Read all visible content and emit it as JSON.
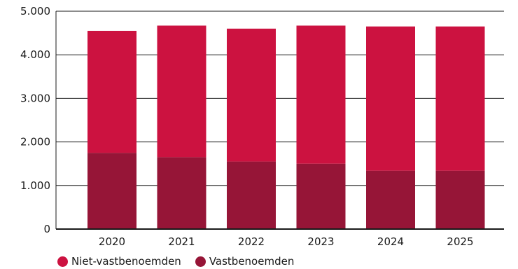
{
  "chart_data": {
    "type": "bar",
    "stacked": true,
    "categories": [
      "2020",
      "2021",
      "2022",
      "2023",
      "2024",
      "2025"
    ],
    "series": [
      {
        "name": "Vastbenoemden",
        "color": "#961537",
        "values": [
          1750,
          1650,
          1550,
          1500,
          1340,
          1340
        ]
      },
      {
        "name": "Niet-vastbenoemden",
        "color": "#cc1240",
        "values": [
          2800,
          3020,
          3050,
          3170,
          3310,
          3310
        ]
      }
    ],
    "yticks": [
      "0",
      "1.000",
      "2.000",
      "3.000",
      "4.000",
      "5.000"
    ],
    "ylim": [
      0,
      5000
    ],
    "grid": true,
    "legend_position": "bottom-left"
  },
  "legend": [
    {
      "label": "Niet-vastbenoemden",
      "color": "#cc1240"
    },
    {
      "label": "Vastbenoemden",
      "color": "#961537"
    }
  ]
}
